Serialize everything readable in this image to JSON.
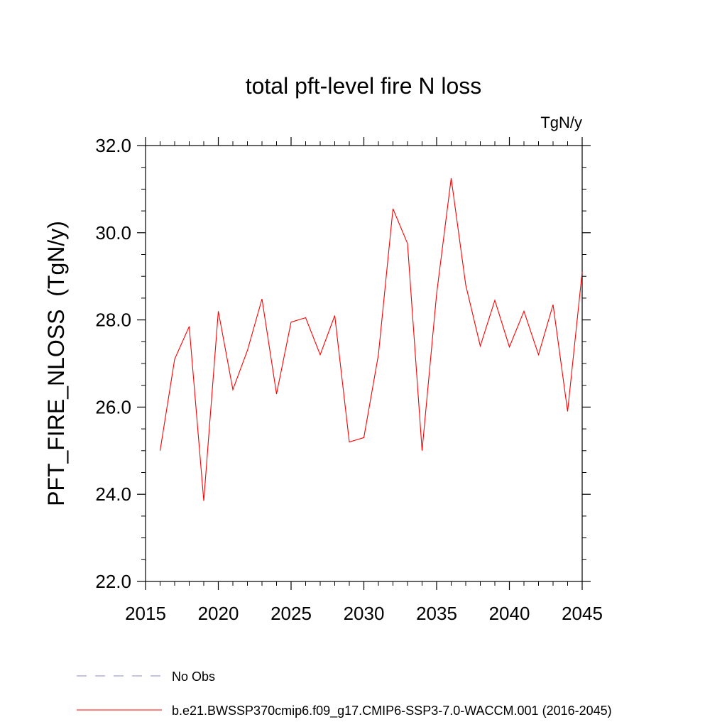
{
  "chart_data": {
    "type": "line",
    "title": "total pft-level fire N loss",
    "units": "TgN/y",
    "ylabel": "PFT_FIRE_NLOSS  (TgN/y)",
    "xlabel": "",
    "xlim": [
      2015,
      2045
    ],
    "ylim": [
      22.0,
      32.0
    ],
    "xticks": [
      2015,
      2020,
      2025,
      2030,
      2035,
      2040,
      2045
    ],
    "xtick_labels": [
      "2015",
      "2020",
      "2025",
      "2030",
      "2035",
      "2040",
      "2045"
    ],
    "yticks": [
      22.0,
      24.0,
      26.0,
      28.0,
      30.0,
      32.0
    ],
    "ytick_labels": [
      "22.0",
      "24.0",
      "26.0",
      "28.0",
      "30.0",
      "32.0"
    ],
    "grid": false,
    "legend_position": "bottom-left",
    "series": [
      {
        "name": "b.e21.BWSSP370cmip6.f09_g17.CMIP6-SSP3-7.0-WACCM.001 (2016-2045)",
        "color": "#ff0000",
        "dash": "solid",
        "x": [
          2016,
          2017,
          2018,
          2019,
          2020,
          2021,
          2022,
          2023,
          2024,
          2025,
          2026,
          2027,
          2028,
          2029,
          2030,
          2031,
          2032,
          2033,
          2034,
          2035,
          2036,
          2037,
          2038,
          2039,
          2040,
          2041,
          2042,
          2043,
          2044,
          2045
        ],
        "y": [
          25.0,
          27.1,
          27.85,
          23.85,
          28.2,
          26.4,
          27.3,
          28.48,
          26.3,
          27.95,
          28.05,
          27.2,
          28.1,
          25.2,
          25.3,
          27.2,
          30.55,
          29.75,
          25.0,
          28.6,
          31.25,
          28.8,
          27.4,
          28.45,
          27.38,
          28.2,
          27.2,
          28.35,
          25.9,
          29.1
        ]
      }
    ],
    "legend": [
      {
        "label": "No Obs",
        "color": "#8888cc",
        "dash": "dashed"
      },
      {
        "label": "b.e21.BWSSP370cmip6.f09_g17.CMIP6-SSP3-7.0-WACCM.001 (2016-2045)",
        "color": "#ff0000",
        "dash": "solid"
      }
    ]
  }
}
